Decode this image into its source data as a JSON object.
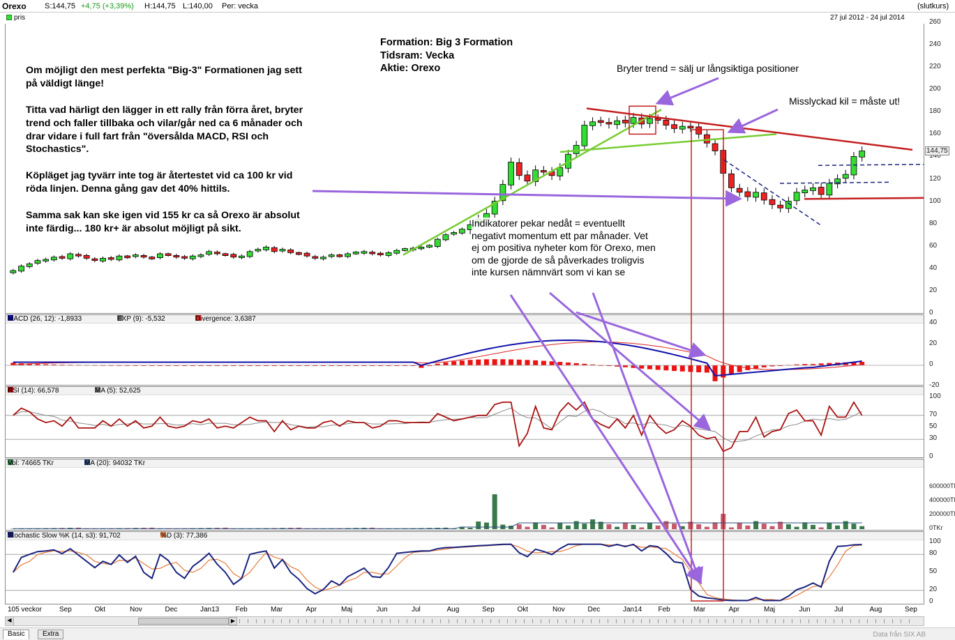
{
  "header": {
    "symbol": "Orexo",
    "s": "S:144,75",
    "chg": "+4,75 (+3,39%)",
    "h": "H:144,75",
    "l": "L:140,00",
    "per": "Per: vecka",
    "close_mode": "(slutkurs)"
  },
  "price_pane": {
    "legend": "pris",
    "date_range": "27 jul 2012 - 24 jul 2014",
    "last_price": "144,75",
    "yticks": [
      "260",
      "240",
      "220",
      "200",
      "180",
      "160",
      "140",
      "120",
      "100",
      "80",
      "60",
      "40",
      "20",
      "0"
    ]
  },
  "macd_pane": {
    "macd": "MACD (26, 12): -1,8933",
    "exp": "EXP (9): -5,532",
    "div": "Divergence: 3,6387",
    "yticks": [
      "40",
      "20",
      "0",
      "-20"
    ]
  },
  "rsi_pane": {
    "rsi": "RSI (14): 66,578",
    "ma": "MA (5): 52,625",
    "yticks": [
      "100",
      "70",
      "50",
      "30",
      "0"
    ]
  },
  "vol_pane": {
    "vol": "Vol: 74665 TKr",
    "ma": "MA (20): 94032 TKr",
    "yticks": [
      "600000TKr",
      "400000TKr",
      "200000TKr",
      "0TKr"
    ]
  },
  "stoch_pane": {
    "k": "Stochastic Slow %K (14, s3): 91,702",
    "d": "%D (3): 77,386",
    "yticks": [
      "100",
      "80",
      "50",
      "20",
      "0"
    ]
  },
  "xaxis": {
    "span": "105 veckor",
    "months": [
      "Sep",
      "Okt",
      "Nov",
      "Dec",
      "Jan13",
      "Feb",
      "Mar",
      "Apr",
      "Maj",
      "Jun",
      "Jul",
      "Aug",
      "Sep",
      "Okt",
      "Nov",
      "Dec",
      "Jan14",
      "Feb",
      "Mar",
      "Apr",
      "Maj",
      "Jun",
      "Jul",
      "Aug",
      "Sep"
    ]
  },
  "tabs": [
    "Basic",
    "Extra"
  ],
  "source": "Data från SIX AB",
  "annotations": {
    "title_lines": [
      "Formation: Big 3 Formation",
      "Tidsram: Vecka",
      "Aktie: Orexo"
    ],
    "left_text": [
      "Om möjligt den mest perfekta \"Big-3\" Formationen jag sett",
      "på väldigt länge!",
      "",
      "Titta vad härligt den lägger in ett rally från förra året, bryter",
      "trend och faller tillbaka och vilar/går ned ca 6 månader och",
      "drar vidare i full fart från \"översålda MACD, RSI och",
      "Stochastics\".",
      "",
      "Köpläget jag tyvärr inte tog är återtestet vid ca 100 kr vid",
      "röda linjen. Denna gång gav det 40% hittils.",
      "",
      "Samma sak kan ske igen vid 155 kr ca så Orexo är absolut",
      "inte färdig... 180 kr+ är absolut möjligt på sikt."
    ],
    "break_trend": "Bryter trend = sälj ur långsiktiga positioner",
    "failed_wedge": "Misslyckad kil = måste ut!",
    "indicators": [
      "Indikatorer pekar nedåt = eventuellt",
      "negativt momentum ett par månader. Vet",
      "ej om positiva nyheter kom för Orexo, men",
      "om de gjorde de så påverkades troligvis",
      "inte kursen nämnvärt som vi kan se"
    ]
  },
  "colors": {
    "up": "#33dd33",
    "down": "#ee2222",
    "macd": "#1010aa",
    "exp": "#dd2222",
    "rsi": "#aa1111",
    "arrow": "#9966dd",
    "trend_red": "#c41e1e",
    "trend_green": "#77cc33",
    "navy": "#1a237e"
  },
  "chart_data": {
    "type": "candlestick",
    "title": "Orexo",
    "period": "weekly",
    "x": "week index 0..104 (27 jul 2012 - 24 jul 2014)",
    "close": [
      38,
      42,
      44,
      47,
      48,
      50,
      49,
      53,
      51,
      49,
      47,
      49,
      48,
      51,
      50,
      52,
      50,
      49,
      53,
      52,
      50,
      49,
      51,
      52,
      55,
      53,
      52,
      50,
      51,
      55,
      57,
      59,
      55,
      57,
      54,
      53,
      51,
      49,
      50,
      52,
      51,
      53,
      54,
      55,
      53,
      52,
      54,
      56,
      57,
      58,
      59,
      60,
      66,
      70,
      72,
      75,
      79,
      84,
      89,
      100,
      115,
      135,
      123,
      118,
      128,
      126,
      123,
      130,
      142,
      150,
      168,
      171,
      171,
      169,
      172,
      170,
      175,
      169,
      174,
      173,
      168,
      165,
      167,
      166,
      160,
      152,
      145,
      125,
      112,
      108,
      104,
      108,
      101,
      97,
      94,
      100,
      108,
      110,
      112,
      106,
      116,
      120,
      124,
      140,
      145
    ],
    "ylim": [
      0,
      260
    ],
    "indicators": {
      "macd": {
        "last": -1.8933,
        "exp": -5.532,
        "divergence": 3.6387
      },
      "rsi": {
        "last": 66.578,
        "ma5": 52.625
      },
      "volume_tkr": {
        "last": 74665,
        "ma20": 94032
      },
      "stochastic": {
        "k": 91.702,
        "d": 77.386
      }
    }
  }
}
